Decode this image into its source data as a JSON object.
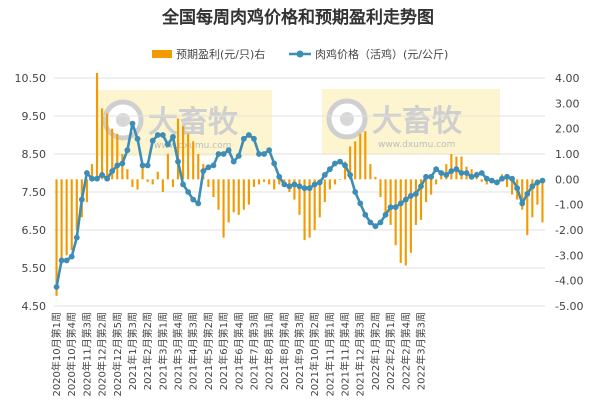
{
  "chart_data": {
    "type": "bar+line",
    "title": "全国每周肉鸡价格和预期盈利走势图",
    "legend_position": "top",
    "watermark_text": "大畜牧",
    "watermark_url": "www.dxumu.com",
    "left_axis": {
      "ylim": [
        4.5,
        10.5
      ],
      "ticks": [
        "4.50",
        "5.50",
        "6.50",
        "7.50",
        "8.50",
        "9.50",
        "10.50"
      ],
      "tick_values": [
        4.5,
        5.5,
        6.5,
        7.5,
        8.5,
        9.5,
        10.5
      ]
    },
    "right_axis": {
      "ylim": [
        -5,
        4
      ],
      "ticks": [
        "4.00",
        "3.00",
        "2.00",
        "1.00",
        "0.00",
        "-1.00",
        "-2.00",
        "-3.00",
        "-4.00",
        "-5.00"
      ],
      "tick_values": [
        4,
        3,
        2,
        1,
        0,
        -1,
        -2,
        -3,
        -4,
        -5
      ]
    },
    "x_tick_labels": [
      "2020年10月第1周",
      "2020年10月第4周",
      "2020年11月第3周",
      "2020年12月第2周",
      "2020年12月第5周",
      "2021年1月第3周",
      "2021年2月第2周",
      "2021年3月第1周",
      "2021年3月第4周",
      "2021年4月第3周",
      "2021年5月第2周",
      "2021年6月第1周",
      "2021年6月第4周",
      "2021年7月第3周",
      "2021年8月第1周",
      "2021年8月第4周",
      "2021年9月第3周",
      "2021年10月第2周",
      "2021年11月第1周",
      "2021年11月第4周",
      "2021年12月第3周",
      "2022年1月第2周",
      "2022年2月第1周",
      "2022年2月第4周",
      "2022年3月第3周"
    ],
    "label_every": 3,
    "series": [
      {
        "name": "预期盈利(元/只)右",
        "axis": "right",
        "kind": "bar",
        "color": "#F29A00",
        "values": [
          -4.6,
          -3.1,
          -3.0,
          -2.8,
          -2.0,
          -1.5,
          -0.9,
          0.6,
          4.2,
          2.8,
          2.6,
          2.0,
          1.8,
          1.0,
          0.4,
          -0.3,
          -0.4,
          0.6,
          -0.1,
          -0.2,
          0.3,
          -0.5,
          1.0,
          -0.3,
          2.4,
          2.1,
          1.8,
          1.5,
          1.0,
          0.6,
          -0.3,
          -0.7,
          -1.2,
          -2.3,
          -1.7,
          -1.3,
          -1.4,
          -1.2,
          -1.0,
          -0.3,
          -0.2,
          -0.1,
          -0.2,
          -0.4,
          -0.2,
          -0.3,
          -0.5,
          -0.8,
          -1.4,
          -2.4,
          -2.3,
          -2.0,
          -1.5,
          -0.9,
          -0.4,
          -0.2,
          0.0,
          0.7,
          1.3,
          1.5,
          1.8,
          1.9,
          0.6,
          0.1,
          -0.7,
          -1.3,
          -1.8,
          -2.6,
          -3.3,
          -3.4,
          -2.9,
          -1.8,
          -1.6,
          -0.9,
          -0.6,
          -0.2,
          0.3,
          0.6,
          1.0,
          0.9,
          0.9,
          0.5,
          0.4,
          0.3,
          -0.1,
          -0.2,
          -0.1,
          0.0,
          0.2,
          -0.3,
          -0.6,
          -0.8,
          -1.2,
          -2.2,
          -1.5,
          -1.0,
          -1.7
        ]
      },
      {
        "name": "肉鸡价格（活鸡）(元/公斤)",
        "axis": "left",
        "kind": "line",
        "color": "#3D8DB5",
        "values": [
          5.0,
          5.7,
          5.7,
          5.8,
          6.3,
          7.3,
          8.0,
          7.85,
          7.85,
          7.95,
          7.85,
          8.05,
          8.2,
          8.25,
          8.6,
          9.3,
          8.9,
          8.2,
          8.2,
          8.85,
          9.0,
          9.0,
          8.75,
          8.95,
          8.3,
          7.7,
          7.5,
          7.3,
          7.2,
          8.05,
          8.15,
          8.2,
          8.5,
          8.5,
          8.6,
          8.3,
          8.45,
          8.9,
          9.0,
          8.9,
          8.5,
          8.5,
          8.6,
          8.25,
          7.9,
          7.7,
          7.65,
          7.7,
          7.65,
          7.6,
          7.6,
          7.7,
          7.75,
          7.95,
          8.1,
          8.25,
          8.3,
          8.2,
          7.95,
          7.5,
          7.2,
          6.9,
          6.7,
          6.6,
          6.7,
          6.9,
          7.1,
          7.1,
          7.2,
          7.3,
          7.4,
          7.45,
          7.65,
          7.9,
          7.9,
          8.1,
          8.0,
          7.95,
          8.05,
          8.1,
          8.0,
          8.0,
          7.9,
          7.95,
          8.0,
          7.85,
          7.8,
          7.75,
          7.85,
          7.9,
          7.85,
          7.6,
          7.2,
          7.45,
          7.65,
          7.75,
          7.8
        ]
      }
    ]
  }
}
